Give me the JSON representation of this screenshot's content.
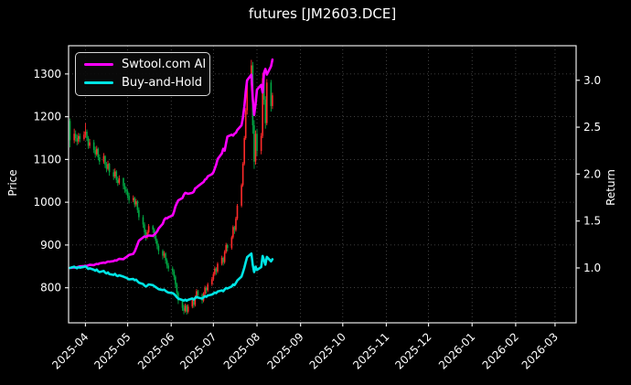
{
  "title": "futures [JM2603.DCE]",
  "legend": {
    "items": [
      {
        "label": "Swtool.com AI",
        "color": "#ff00ff"
      },
      {
        "label": "Buy-and-Hold",
        "color": "#00e5e5"
      }
    ]
  },
  "axes": {
    "left_label": "Price",
    "right_label": "Return",
    "left_ticks": [
      "800",
      "900",
      "1000",
      "1100",
      "1200",
      "1300"
    ],
    "right_ticks": [
      "1.0",
      "1.5",
      "2.0",
      "2.5",
      "3.0"
    ],
    "x_tick_labels": [
      "2025-04",
      "2025-05",
      "2025-06",
      "2025-07",
      "2025-08",
      "2025-09",
      "2025-10",
      "2025-11",
      "2025-12",
      "2026-01",
      "2026-02",
      "2026-03"
    ],
    "x_tick_dates": [
      "2025-04-01",
      "2025-05-01",
      "2025-06-01",
      "2025-07-01",
      "2025-08-01",
      "2025-09-01",
      "2025-10-01",
      "2025-11-01",
      "2025-12-01",
      "2026-01-01",
      "2026-02-01",
      "2026-03-01"
    ]
  },
  "colors": {
    "background": "#000000",
    "text": "#ffffff",
    "spine": "#e8e8e8",
    "grid": "#6f6f6f",
    "candle_up": "#ff2a2a",
    "candle_down": "#00a844",
    "ai_line": "#ff00ff",
    "buyhold_line": "#00e5e5"
  },
  "chart_data": {
    "type": "candlestick+line",
    "title": "futures [JM2603.DCE]",
    "ylabel_left": "Price",
    "ylabel_right": "Return",
    "grid": true,
    "legend_position": "upper left",
    "x_range": [
      "2025-03-20",
      "2026-03-16"
    ],
    "price_axis_range": [
      718,
      1366
    ],
    "return_axis_range": [
      0.415,
      3.368
    ],
    "price_ticks": [
      800,
      900,
      1000,
      1100,
      1200,
      1300
    ],
    "return_ticks": [
      1.0,
      1.5,
      2.0,
      2.5,
      3.0
    ],
    "candles": {
      "up_means": "close >= open (red, Chinese convention)",
      "dates": [
        "2025-03-21",
        "2025-03-24",
        "2025-03-25",
        "2025-03-26",
        "2025-03-27",
        "2025-03-28",
        "2025-03-31",
        "2025-04-01",
        "2025-04-02",
        "2025-04-03",
        "2025-04-04",
        "2025-04-07",
        "2025-04-08",
        "2025-04-09",
        "2025-04-10",
        "2025-04-11",
        "2025-04-14",
        "2025-04-15",
        "2025-04-16",
        "2025-04-17",
        "2025-04-18",
        "2025-04-21",
        "2025-04-22",
        "2025-04-23",
        "2025-04-24",
        "2025-04-25",
        "2025-04-28",
        "2025-04-29",
        "2025-04-30",
        "2025-05-01",
        "2025-05-02",
        "2025-05-05",
        "2025-05-06",
        "2025-05-07",
        "2025-05-08",
        "2025-05-09",
        "2025-05-12",
        "2025-05-13",
        "2025-05-14",
        "2025-05-15",
        "2025-05-16",
        "2025-05-19",
        "2025-05-20",
        "2025-05-21",
        "2025-05-22",
        "2025-05-23",
        "2025-05-26",
        "2025-05-27",
        "2025-05-28",
        "2025-05-29",
        "2025-05-30",
        "2025-06-02",
        "2025-06-03",
        "2025-06-04",
        "2025-06-05",
        "2025-06-06",
        "2025-06-09",
        "2025-06-10",
        "2025-06-11",
        "2025-06-12",
        "2025-06-13",
        "2025-06-16",
        "2025-06-17",
        "2025-06-18",
        "2025-06-19",
        "2025-06-20",
        "2025-06-23",
        "2025-06-24",
        "2025-06-25",
        "2025-06-26",
        "2025-06-27",
        "2025-06-30",
        "2025-07-01",
        "2025-07-02",
        "2025-07-03",
        "2025-07-04",
        "2025-07-07",
        "2025-07-08",
        "2025-07-09",
        "2025-07-10",
        "2025-07-11",
        "2025-07-14",
        "2025-07-15",
        "2025-07-16",
        "2025-07-17",
        "2025-07-18",
        "2025-07-21",
        "2025-07-22",
        "2025-07-23",
        "2025-07-24",
        "2025-07-25",
        "2025-07-28",
        "2025-07-29",
        "2025-07-30",
        "2025-07-31",
        "2025-08-01",
        "2025-08-04",
        "2025-08-05",
        "2025-08-06",
        "2025-08-07",
        "2025-08-08",
        "2025-08-11",
        "2025-08-12"
      ],
      "ohlc": [
        [
          1190,
          1196,
          1128,
          1145
        ],
        [
          1145,
          1172,
          1138,
          1160
        ],
        [
          1160,
          1168,
          1142,
          1150
        ],
        [
          1150,
          1158,
          1133,
          1142
        ],
        [
          1142,
          1162,
          1136,
          1155
        ],
        [
          1155,
          1161,
          1140,
          1148
        ],
        [
          1148,
          1166,
          1144,
          1158
        ],
        [
          1158,
          1185,
          1152,
          1165
        ],
        [
          1165,
          1170,
          1143,
          1150
        ],
        [
          1150,
          1155,
          1125,
          1132
        ],
        [
          1132,
          1148,
          1126,
          1140
        ],
        [
          1140,
          1146,
          1115,
          1122
        ],
        [
          1122,
          1130,
          1104,
          1112
        ],
        [
          1112,
          1132,
          1108,
          1125
        ],
        [
          1125,
          1128,
          1098,
          1105
        ],
        [
          1105,
          1112,
          1088,
          1095
        ],
        [
          1095,
          1115,
          1090,
          1108
        ],
        [
          1108,
          1110,
          1080,
          1088
        ],
        [
          1088,
          1094,
          1070,
          1078
        ],
        [
          1078,
          1097,
          1074,
          1090
        ],
        [
          1090,
          1092,
          1062,
          1070
        ],
        [
          1070,
          1077,
          1052,
          1060
        ],
        [
          1060,
          1079,
          1056,
          1072
        ],
        [
          1072,
          1075,
          1045,
          1052
        ],
        [
          1052,
          1060,
          1038,
          1045
        ],
        [
          1045,
          1063,
          1041,
          1056
        ],
        [
          1056,
          1058,
          1030,
          1038
        ],
        [
          1038,
          1045,
          1022,
          1030
        ],
        [
          1030,
          1036,
          1018,
          1025
        ],
        [
          1025,
          1030,
          1008,
          1015
        ],
        [
          1015,
          1022,
          997,
          1005
        ],
        [
          1005,
          1016,
          1000,
          1010
        ],
        [
          1010,
          1013,
          988,
          995
        ],
        [
          995,
          1008,
          990,
          1002
        ],
        [
          1002,
          1005,
          975,
          982
        ],
        [
          982,
          988,
          958,
          965
        ],
        [
          965,
          970,
          940,
          948
        ],
        [
          948,
          953,
          922,
          930
        ],
        [
          930,
          936,
          910,
          918
        ],
        [
          918,
          935,
          914,
          930
        ],
        [
          930,
          949,
          926,
          944
        ],
        [
          944,
          947,
          928,
          936
        ],
        [
          936,
          940,
          915,
          922
        ],
        [
          922,
          927,
          903,
          910
        ],
        [
          910,
          915,
          890,
          898
        ],
        [
          898,
          903,
          878,
          886
        ],
        [
          886,
          890,
          866,
          875
        ],
        [
          875,
          886,
          870,
          880
        ],
        [
          880,
          883,
          856,
          864
        ],
        [
          864,
          869,
          845,
          852
        ],
        [
          852,
          858,
          838,
          845
        ],
        [
          845,
          850,
          830,
          838
        ],
        [
          838,
          843,
          818,
          826
        ],
        [
          826,
          830,
          800,
          808
        ],
        [
          808,
          812,
          780,
          788
        ],
        [
          788,
          792,
          762,
          770
        ],
        [
          770,
          774,
          746,
          753
        ],
        [
          753,
          760,
          738,
          746
        ],
        [
          746,
          763,
          742,
          758
        ],
        [
          758,
          761,
          737,
          744
        ],
        [
          744,
          761,
          740,
          756
        ],
        [
          756,
          777,
          752,
          772
        ],
        [
          772,
          775,
          753,
          760
        ],
        [
          760,
          782,
          756,
          778
        ],
        [
          778,
          797,
          774,
          792
        ],
        [
          792,
          795,
          776,
          783
        ],
        [
          783,
          787,
          763,
          770
        ],
        [
          770,
          790,
          766,
          786
        ],
        [
          786,
          805,
          782,
          800
        ],
        [
          800,
          803,
          786,
          794
        ],
        [
          794,
          812,
          790,
          808
        ],
        [
          808,
          825,
          804,
          820
        ],
        [
          820,
          837,
          816,
          832
        ],
        [
          832,
          850,
          828,
          845
        ],
        [
          845,
          848,
          830,
          838
        ],
        [
          838,
          860,
          834,
          856
        ],
        [
          856,
          875,
          852,
          870
        ],
        [
          870,
          873,
          852,
          860
        ],
        [
          860,
          888,
          856,
          884
        ],
        [
          884,
          905,
          880,
          900
        ],
        [
          900,
          903,
          885,
          893
        ],
        [
          893,
          922,
          889,
          918
        ],
        [
          918,
          946,
          914,
          942
        ],
        [
          942,
          945,
          926,
          935
        ],
        [
          935,
          966,
          931,
          962
        ],
        [
          962,
          996,
          958,
          992
        ],
        [
          992,
          1044,
          988,
          1040
        ],
        [
          1040,
          1094,
          1036,
          1090
        ],
        [
          1090,
          1155,
          1086,
          1150
        ],
        [
          1150,
          1220,
          1146,
          1215
        ],
        [
          1215,
          1282,
          1205,
          1275
        ],
        [
          1275,
          1333,
          1262,
          1320
        ],
        [
          1320,
          1328,
          1160,
          1180
        ],
        [
          1180,
          1192,
          1078,
          1095
        ],
        [
          1095,
          1168,
          1088,
          1160
        ],
        [
          1160,
          1172,
          1108,
          1120
        ],
        [
          1120,
          1162,
          1112,
          1155
        ],
        [
          1155,
          1302,
          1150,
          1290
        ],
        [
          1290,
          1295,
          1228,
          1240
        ],
        [
          1240,
          1248,
          1172,
          1185
        ],
        [
          1185,
          1288,
          1180,
          1280
        ],
        [
          1280,
          1286,
          1212,
          1225
        ],
        [
          1225,
          1256,
          1218,
          1250
        ]
      ]
    },
    "series": [
      {
        "name": "Swtool.com AI",
        "axis": "return",
        "color": "#ff00ff",
        "values": [
          1.0,
          1.005,
          1.003,
          1.008,
          1.012,
          1.016,
          1.02,
          1.022,
          1.02,
          1.028,
          1.033,
          1.03,
          1.038,
          1.043,
          1.04,
          1.048,
          1.056,
          1.053,
          1.061,
          1.068,
          1.066,
          1.073,
          1.081,
          1.078,
          1.088,
          1.096,
          1.093,
          1.106,
          1.115,
          1.125,
          1.138,
          1.15,
          1.175,
          1.21,
          1.25,
          1.29,
          1.325,
          1.335,
          1.33,
          1.34,
          1.346,
          1.342,
          1.356,
          1.37,
          1.39,
          1.42,
          1.47,
          1.51,
          1.53,
          1.528,
          1.54,
          1.56,
          1.6,
          1.655,
          1.69,
          1.72,
          1.745,
          1.78,
          1.8,
          1.795,
          1.79,
          1.8,
          1.812,
          1.848,
          1.856,
          1.87,
          1.905,
          1.915,
          1.94,
          1.95,
          1.975,
          2.0,
          2.02,
          2.06,
          2.1,
          2.16,
          2.22,
          2.27,
          2.25,
          2.33,
          2.4,
          2.42,
          2.41,
          2.43,
          2.44,
          2.47,
          2.52,
          2.6,
          2.72,
          2.88,
          3.0,
          3.06,
          2.8,
          2.63,
          2.75,
          2.9,
          2.95,
          2.87,
          3.08,
          3.12,
          3.06,
          3.15,
          3.22
        ]
      },
      {
        "name": "Buy-and-Hold",
        "axis": "return",
        "color": "#00e5e5",
        "values": [
          1.0,
          1.013,
          1.004,
          0.997,
          1.009,
          1.003,
          1.011,
          1.017,
          1.004,
          0.989,
          0.996,
          0.98,
          0.971,
          0.983,
          0.965,
          0.956,
          0.968,
          0.95,
          0.941,
          0.952,
          0.934,
          0.926,
          0.936,
          0.919,
          0.913,
          0.922,
          0.907,
          0.9,
          0.895,
          0.886,
          0.878,
          0.882,
          0.869,
          0.875,
          0.858,
          0.843,
          0.828,
          0.812,
          0.802,
          0.812,
          0.824,
          0.817,
          0.805,
          0.795,
          0.784,
          0.774,
          0.764,
          0.769,
          0.755,
          0.744,
          0.738,
          0.732,
          0.721,
          0.706,
          0.688,
          0.673,
          0.658,
          0.652,
          0.662,
          0.65,
          0.66,
          0.674,
          0.664,
          0.679,
          0.692,
          0.684,
          0.673,
          0.686,
          0.699,
          0.693,
          0.706,
          0.716,
          0.727,
          0.738,
          0.732,
          0.748,
          0.76,
          0.751,
          0.772,
          0.786,
          0.78,
          0.802,
          0.823,
          0.817,
          0.84,
          0.866,
          0.908,
          0.952,
          1.004,
          1.061,
          1.114,
          1.153,
          1.031,
          0.956,
          1.013,
          0.978,
          1.009,
          1.127,
          1.083,
          1.035,
          1.118,
          1.07,
          1.092
        ]
      }
    ]
  }
}
